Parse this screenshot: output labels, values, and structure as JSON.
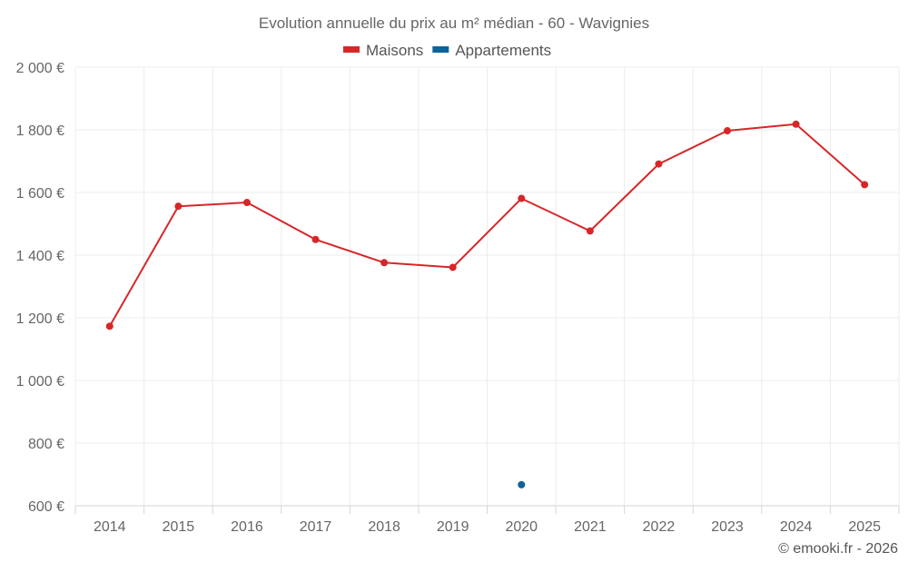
{
  "chart_data": {
    "type": "line",
    "title": "Evolution annuelle du prix au m² médian - 60 - Wavignies",
    "categories": [
      "2014",
      "2015",
      "2016",
      "2017",
      "2018",
      "2019",
      "2020",
      "2021",
      "2022",
      "2023",
      "2024",
      "2025"
    ],
    "series": [
      {
        "name": "Maisons",
        "color": "#d62728",
        "values": [
          1173,
          1556,
          1568,
          1450,
          1376,
          1361,
          1581,
          1477,
          1691,
          1797,
          1818,
          1625
        ]
      },
      {
        "name": "Appartements",
        "color": "#0e6398",
        "values": [
          null,
          null,
          null,
          null,
          null,
          null,
          667,
          null,
          null,
          null,
          null,
          null
        ]
      }
    ],
    "ylim": [
      600,
      2000
    ],
    "y_ticks": [
      600,
      800,
      1000,
      1200,
      1400,
      1600,
      1800,
      2000
    ],
    "y_tick_labels": [
      "600 €",
      "800 €",
      "1 000 €",
      "1 200 €",
      "1 400 €",
      "1 600 €",
      "1 800 €",
      "2 000 €"
    ],
    "xlabel": "",
    "ylabel": "",
    "grid": true,
    "legend_position": "top-center"
  },
  "credit": "© emooki.fr - 2026"
}
